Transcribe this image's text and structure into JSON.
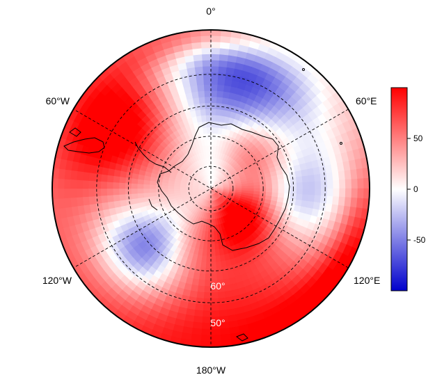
{
  "map": {
    "projection": "south-polar-stereographic",
    "longitude_labels": [
      "0°",
      "60°E",
      "120°E",
      "180°W",
      "120°W",
      "60°W"
    ],
    "latitude_labels": [
      "50°",
      "60°"
    ],
    "gridlines": "dashed",
    "colormap": "blue-white-red",
    "colors": {
      "low": "#0000cc",
      "mid": "#ffffff",
      "high": "#ff0000"
    }
  },
  "colorbar": {
    "ticks": [
      "50",
      "0",
      "-50"
    ],
    "tick_values": [
      50,
      0,
      -50
    ],
    "range": [
      -100,
      100
    ]
  }
}
